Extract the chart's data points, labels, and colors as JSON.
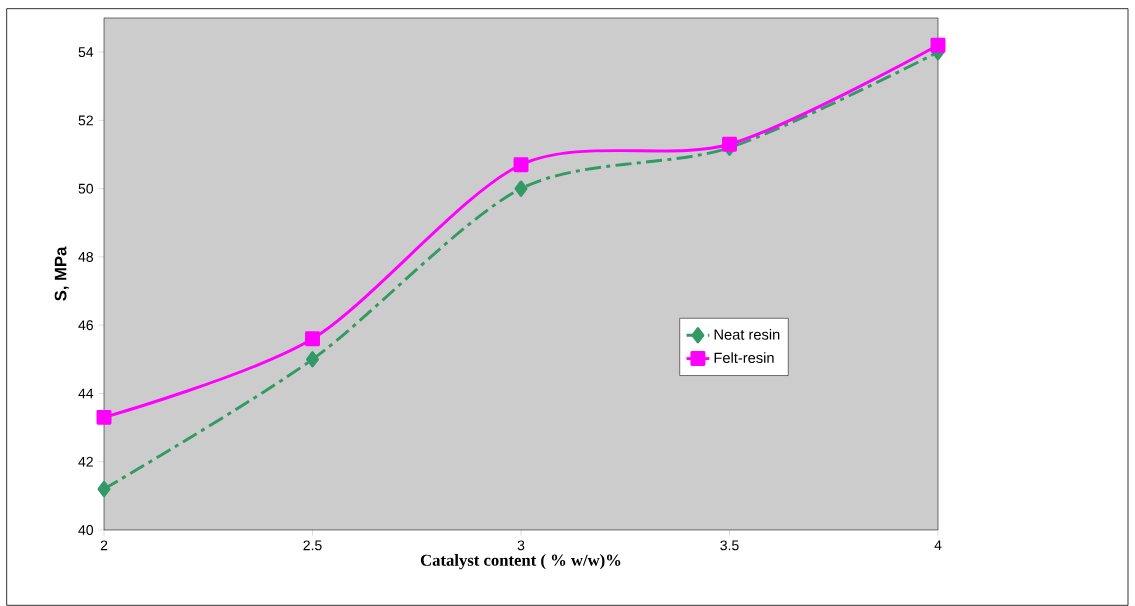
{
  "chart_data": {
    "type": "line",
    "xlabel": "Catalyst content ( % w/w)%",
    "ylabel": "S, MPa",
    "x": [
      2,
      2.5,
      3,
      3.5,
      4
    ],
    "series": [
      {
        "name": "Neat resin",
        "color": "#339966",
        "values": [
          41.2,
          45,
          50,
          51.2,
          54
        ],
        "marker": "diamond",
        "line_style": "dashed"
      },
      {
        "name": "Felt-resin",
        "color": "#ff00ff",
        "values": [
          43.3,
          45.6,
          50.7,
          51.3,
          54.2
        ],
        "marker": "square",
        "line_style": "solid"
      }
    ],
    "xlim": [
      2,
      4
    ],
    "xticks": [
      2,
      2.5,
      3,
      3.5,
      4
    ],
    "ylim": [
      40,
      55
    ],
    "yticks": [
      40,
      42,
      44,
      46,
      48,
      50,
      52,
      54
    ],
    "grid": false,
    "legend": "right"
  }
}
